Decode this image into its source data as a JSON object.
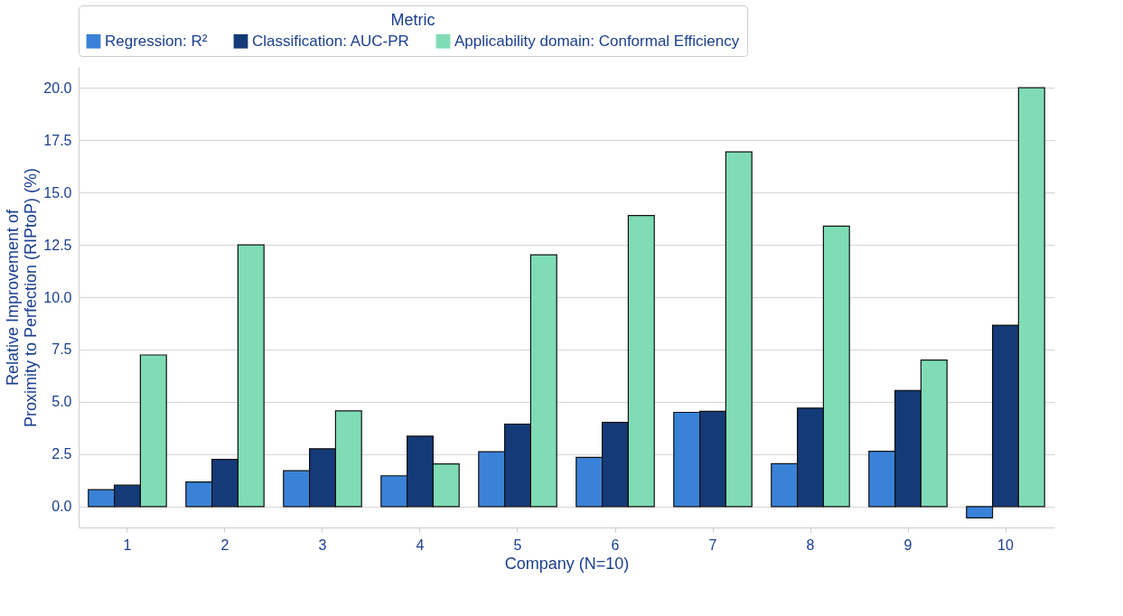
{
  "chart_data": {
    "type": "bar",
    "xlabel": "Company (N=10)",
    "ylabel": "Relative Improvement of\nProximity to Perfection (RIPtoP) (%)",
    "legend_title": "Metric",
    "categories": [
      "1",
      "2",
      "3",
      "4",
      "5",
      "6",
      "7",
      "8",
      "9",
      "10"
    ],
    "series": [
      {
        "name": "Regression: R²",
        "color": "#3a82d8",
        "values": [
          0.81,
          1.17,
          1.71,
          1.47,
          2.62,
          2.35,
          4.5,
          2.05,
          2.64,
          -0.54
        ]
      },
      {
        "name": "Classification: AUC-PR",
        "color": "#143a78",
        "values": [
          1.02,
          2.25,
          2.76,
          3.36,
          3.94,
          4.02,
          4.55,
          4.7,
          5.54,
          8.66
        ]
      },
      {
        "name": "Applicability domain: Conformal Efficiency",
        "color": "#7fdcb5",
        "values": [
          7.24,
          12.5,
          4.57,
          2.04,
          12.02,
          13.9,
          16.94,
          13.39,
          7.0,
          20.0
        ]
      }
    ],
    "ylim": [
      -1,
      21
    ],
    "yticks": [
      {
        "value": 0,
        "label": "0.0"
      },
      {
        "value": 2.5,
        "label": "2.5"
      },
      {
        "value": 5,
        "label": "5.0"
      },
      {
        "value": 7.5,
        "label": "7.5"
      },
      {
        "value": 10,
        "label": "10.0"
      },
      {
        "value": 12.5,
        "label": "12.5"
      },
      {
        "value": 15,
        "label": "15.0"
      },
      {
        "value": 17.5,
        "label": "17.5"
      },
      {
        "value": 20,
        "label": "20.0"
      }
    ],
    "grid": "y",
    "legend": "top"
  }
}
